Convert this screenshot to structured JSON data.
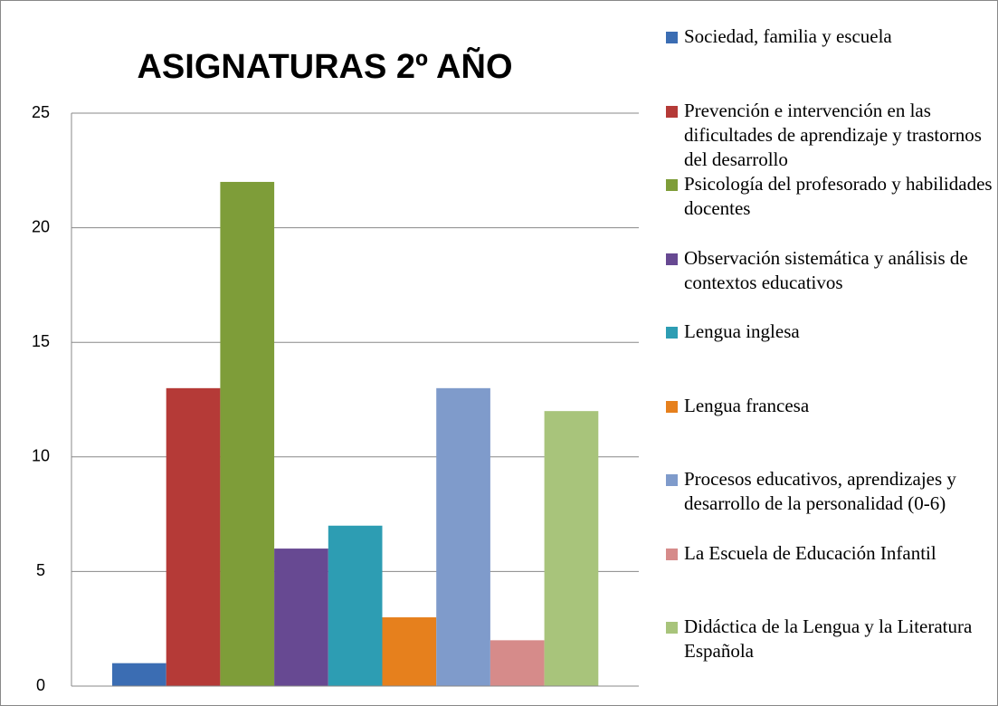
{
  "chart_data": {
    "type": "bar",
    "title": "ASIGNATURAS 2º AÑO",
    "series": [
      {
        "name": "Sociedad, familia y escuela",
        "color": "#3b6db3",
        "values": [
          1
        ]
      },
      {
        "name": "Prevención e intervención en las dificultades de aprendizaje y trastornos del desarrollo",
        "color": "#b53a37",
        "values": [
          13
        ]
      },
      {
        "name": "Psicología del profesorado y habilidades docentes",
        "color": "#7e9d39",
        "values": [
          22
        ]
      },
      {
        "name": "Observación sistemática y análisis de contextos educativos",
        "color": "#674992",
        "values": [
          6
        ]
      },
      {
        "name": "Lengua inglesa",
        "color": "#2d9db3",
        "values": [
          7
        ]
      },
      {
        "name": "Lengua francesa",
        "color": "#e6801d",
        "values": [
          3
        ]
      },
      {
        "name": "Procesos educativos, aprendizajes y desarrollo de la personalidad (0-6)",
        "color": "#7f9bcb",
        "values": [
          13
        ]
      },
      {
        "name": "La Escuela de Educación Infantil",
        "color": "#d68b8a",
        "values": [
          2
        ]
      },
      {
        "name": "Didáctica de la Lengua y la Literatura Española",
        "color": "#a8c47b",
        "values": [
          12
        ]
      }
    ],
    "ylim": [
      0,
      25
    ],
    "yticks": [
      0,
      5,
      10,
      15,
      20,
      25
    ],
    "grid": true,
    "legend": "right"
  }
}
